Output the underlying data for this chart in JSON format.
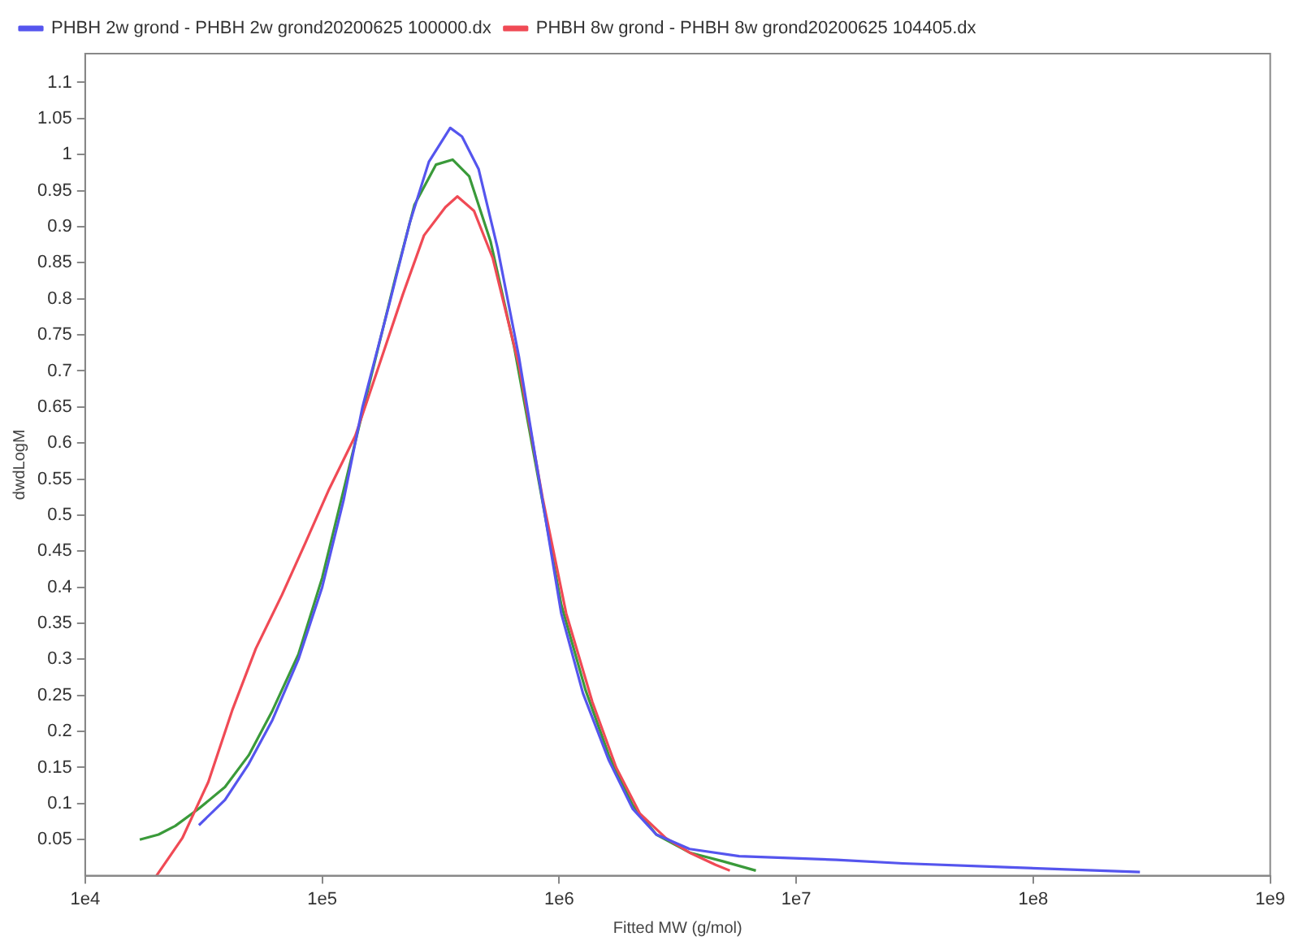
{
  "chart_data": {
    "type": "line",
    "xlabel": "Fitted MW (g/mol)",
    "ylabel": "dwdLogM",
    "log": "x",
    "legend": "top left",
    "xlim": [
      10000,
      1000000000
    ],
    "xticks": [
      {
        "value": 10000,
        "label": "1e4"
      },
      {
        "value": 100000,
        "label": "1e5"
      },
      {
        "value": 1000000,
        "label": "1e6"
      },
      {
        "value": 10000000,
        "label": "1e7"
      },
      {
        "value": 100000000,
        "label": "1e8"
      },
      {
        "value": 1000000000,
        "label": "1e9"
      }
    ],
    "ylim": [
      0,
      1.14
    ],
    "yticks": [
      0.05,
      0.1,
      0.15,
      0.2,
      0.25,
      0.3,
      0.35,
      0.4,
      0.45,
      0.5,
      0.55,
      0.6,
      0.65,
      0.7,
      0.75,
      0.8,
      0.85,
      0.9,
      0.95,
      1,
      1.05,
      1.1
    ],
    "series": [
      {
        "name": "PHBH 2w grond - PHBH 2w grond20200625 100000.dx",
        "color": "#5555ee",
        "x": [
          30200,
          38900,
          49000,
          61700,
          79400,
          100000,
          123000,
          148000,
          191000,
          234000,
          282000,
          347000,
          389000,
          457000,
          550000,
          676000,
          851000,
          1020000,
          1260000,
          1620000,
          2040000,
          2570000,
          3550000,
          5750000,
          14800000,
          28200000,
          72400000,
          191000000,
          282000000
        ],
        "values": [
          0.07,
          0.105,
          0.155,
          0.216,
          0.3,
          0.4,
          0.52,
          0.65,
          0.79,
          0.905,
          0.99,
          1.037,
          1.025,
          0.98,
          0.87,
          0.72,
          0.52,
          0.364,
          0.253,
          0.16,
          0.093,
          0.057,
          0.037,
          0.027,
          0.022,
          0.017,
          0.012,
          0.007,
          0.005
        ]
      },
      {
        "name": "PHBH 8w grond - PHBH 8w grond20200625 104405.dx",
        "color": "#f04a55",
        "x": [
          20000,
          25700,
          33100,
          41700,
          52500,
          67600,
          85100,
          107000,
          138000,
          174000,
          219000,
          269000,
          331000,
          372000,
          437000,
          525000,
          676000,
          851000,
          1070000,
          1380000,
          1740000,
          2190000,
          2820000,
          3550000,
          4570000,
          5250000
        ],
        "values": [
          0,
          0.052,
          0.13,
          0.229,
          0.315,
          0.389,
          0.462,
          0.536,
          0.61,
          0.708,
          0.806,
          0.888,
          0.927,
          0.942,
          0.922,
          0.856,
          0.708,
          0.524,
          0.364,
          0.241,
          0.15,
          0.086,
          0.052,
          0.032,
          0.015,
          0.007
        ]
      },
      {
        "color": "#3a9a3a",
        "x": [
          17000,
          20400,
          24000,
          30200,
          38900,
          49000,
          61700,
          79400,
          100000,
          126000,
          162000,
          204000,
          245000,
          302000,
          355000,
          417000,
          513000,
          646000,
          832000,
          1020000,
          1290000,
          1620000,
          2040000,
          2570000,
          3550000,
          4900000,
          6760000
        ],
        "values": [
          0.05,
          0.057,
          0.069,
          0.093,
          0.123,
          0.167,
          0.229,
          0.307,
          0.413,
          0.548,
          0.696,
          0.83,
          0.93,
          0.986,
          0.993,
          0.97,
          0.88,
          0.733,
          0.536,
          0.376,
          0.258,
          0.167,
          0.098,
          0.057,
          0.032,
          0.02,
          0.007
        ]
      }
    ]
  }
}
